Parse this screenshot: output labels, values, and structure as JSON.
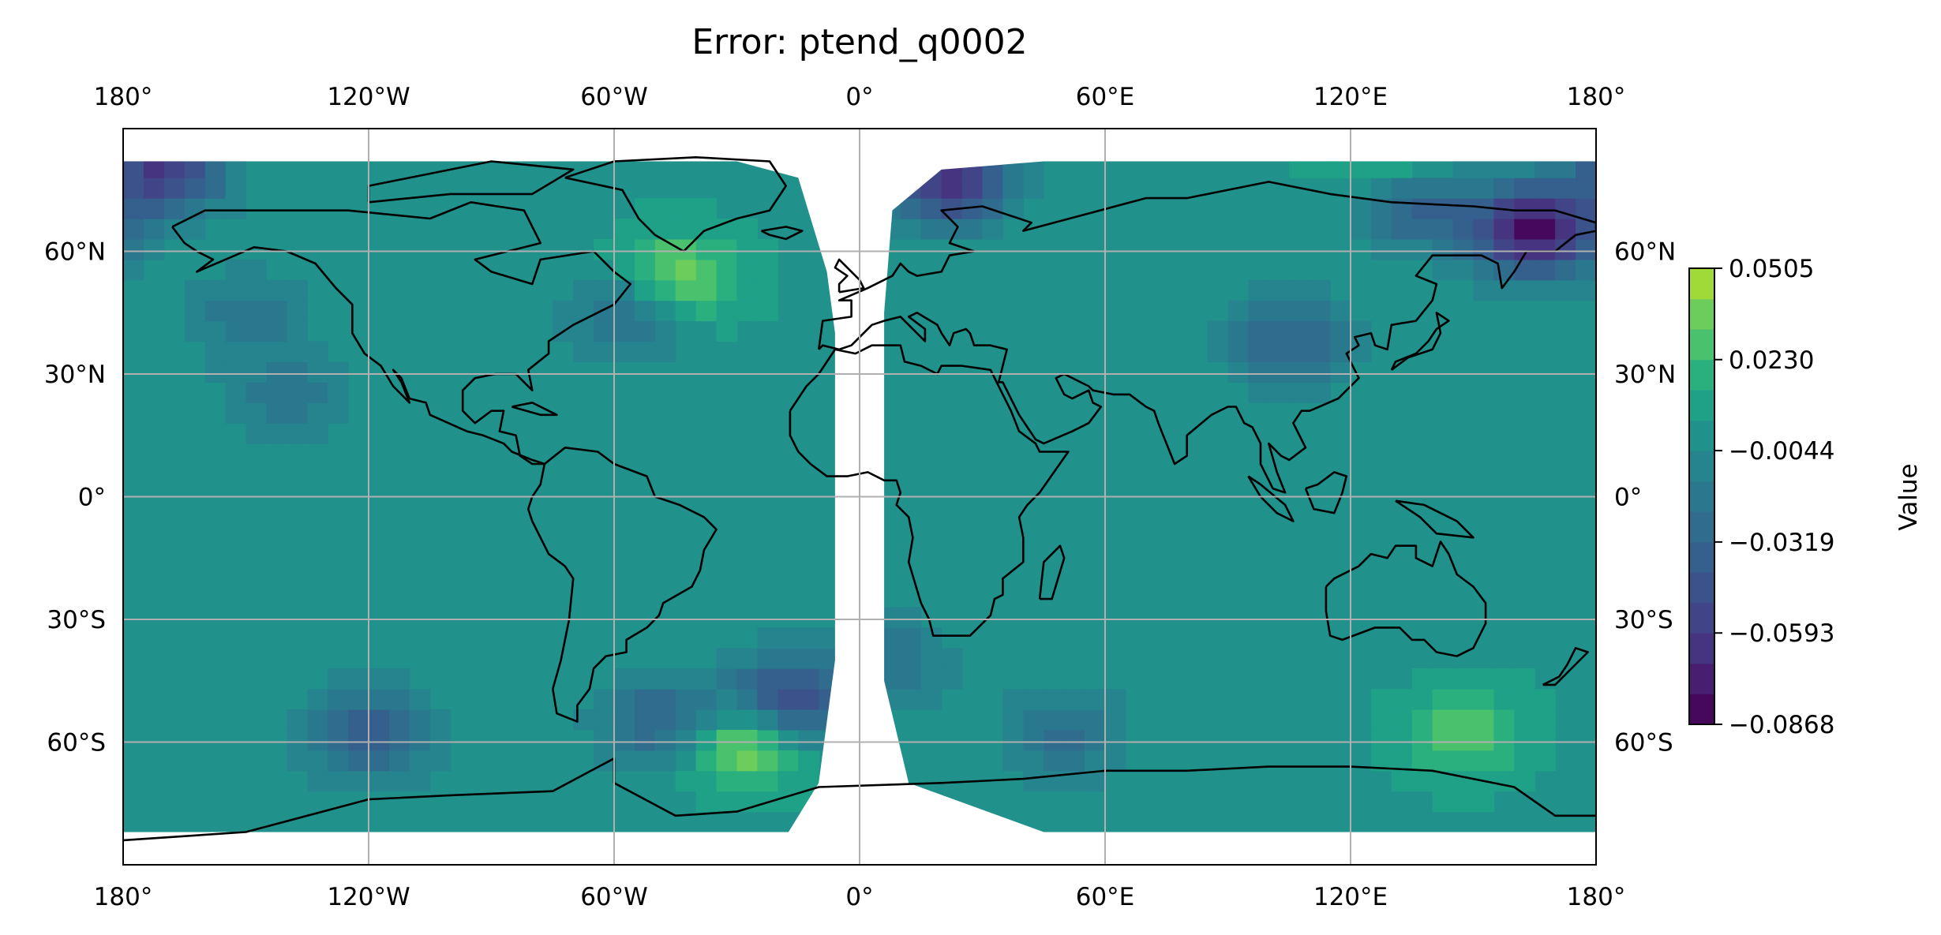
{
  "chart_data": {
    "type": "heatmap",
    "title": "Error: ptend_q0002",
    "projection": "PlateCarree",
    "xlim": [
      -180,
      180
    ],
    "ylim": [
      -90,
      90
    ],
    "grid": true,
    "colormap": "viridis",
    "lon_ticks": [
      {
        "value": -180,
        "label": "180°"
      },
      {
        "value": -120,
        "label": "120°W"
      },
      {
        "value": -60,
        "label": "60°W"
      },
      {
        "value": 0,
        "label": "0°"
      },
      {
        "value": 60,
        "label": "60°E"
      },
      {
        "value": 120,
        "label": "120°E"
      },
      {
        "value": 180,
        "label": "180°"
      }
    ],
    "lat_ticks": [
      {
        "value": 60,
        "label": "60°N"
      },
      {
        "value": 30,
        "label": "30°N"
      },
      {
        "value": 0,
        "label": "0°"
      },
      {
        "value": -30,
        "label": "30°S"
      },
      {
        "value": -60,
        "label": "60°S"
      }
    ],
    "data_extent": {
      "lat_min": -82,
      "lat_max": 82
    },
    "missing_band_lon": [
      -6,
      6
    ],
    "background_value": 0.0025,
    "anomalies": [
      {
        "name": "north-atlantic-high",
        "lon": -45,
        "lat": 53,
        "value": 0.045
      },
      {
        "name": "labrador-low",
        "lon": -55,
        "lat": 45,
        "value": -0.034
      },
      {
        "name": "south-atlantic-high",
        "lon": -28,
        "lat": -60,
        "value": 0.05
      },
      {
        "name": "south-atlantic-low",
        "lon": -18,
        "lat": -50,
        "value": -0.056
      },
      {
        "name": "drake-low",
        "lon": -48,
        "lat": -55,
        "value": -0.036
      },
      {
        "name": "south-pacific-low",
        "lon": -120,
        "lat": -58,
        "value": -0.042
      },
      {
        "name": "south-indian-low",
        "lon": 50,
        "lat": -58,
        "value": -0.024
      },
      {
        "name": "tasman-high",
        "lon": 148,
        "lat": -58,
        "value": 0.03
      },
      {
        "name": "kamchatka-low",
        "lon": 165,
        "lat": 65,
        "value": -0.082
      },
      {
        "name": "eastern-siberia-low",
        "lon": 135,
        "lat": 72,
        "value": -0.04
      },
      {
        "name": "arctic-high",
        "lon": 130,
        "lat": 82,
        "value": 0.032
      },
      {
        "name": "scandinavia-low",
        "lon": 22,
        "lat": 78,
        "value": -0.068
      },
      {
        "name": "asia-low",
        "lon": 105,
        "lat": 38,
        "value": -0.034
      },
      {
        "name": "arctic-canada-low",
        "lon": -170,
        "lat": 80,
        "value": -0.06
      },
      {
        "name": "north-pacific-weak-low",
        "lon": -150,
        "lat": 45,
        "value": -0.018
      },
      {
        "name": "east-pacific-weak-low",
        "lon": -140,
        "lat": 25,
        "value": -0.018
      },
      {
        "name": "west-africa-coast-low",
        "lon": 8,
        "lat": -40,
        "value": -0.02
      }
    ],
    "colorbar": {
      "label": "Value",
      "min": -0.0868,
      "max": 0.0505,
      "tick_labels": [
        "0.0505",
        "0.0230",
        "−0.0044",
        "−0.0319",
        "−0.0593",
        "−0.0868"
      ],
      "tick_values": [
        0.0505,
        0.023,
        -0.0044,
        -0.0319,
        -0.0593,
        -0.0868
      ],
      "levels": [
        -0.0868,
        -0.0776,
        -0.0685,
        -0.0593,
        -0.0502,
        -0.041,
        -0.0319,
        -0.0227,
        -0.0136,
        -0.0044,
        0.0047,
        0.0139,
        0.023,
        0.0322,
        0.0413,
        0.0505
      ],
      "level_colors": [
        "#45085b",
        "#481f70",
        "#463480",
        "#414487",
        "#3b528b",
        "#355f8d",
        "#2f6c8e",
        "#2a788e",
        "#25848e",
        "#21918c",
        "#1fa188",
        "#2ab07f",
        "#4ac16d",
        "#6ccd5a",
        "#a0da39",
        "#d8e219"
      ]
    }
  }
}
